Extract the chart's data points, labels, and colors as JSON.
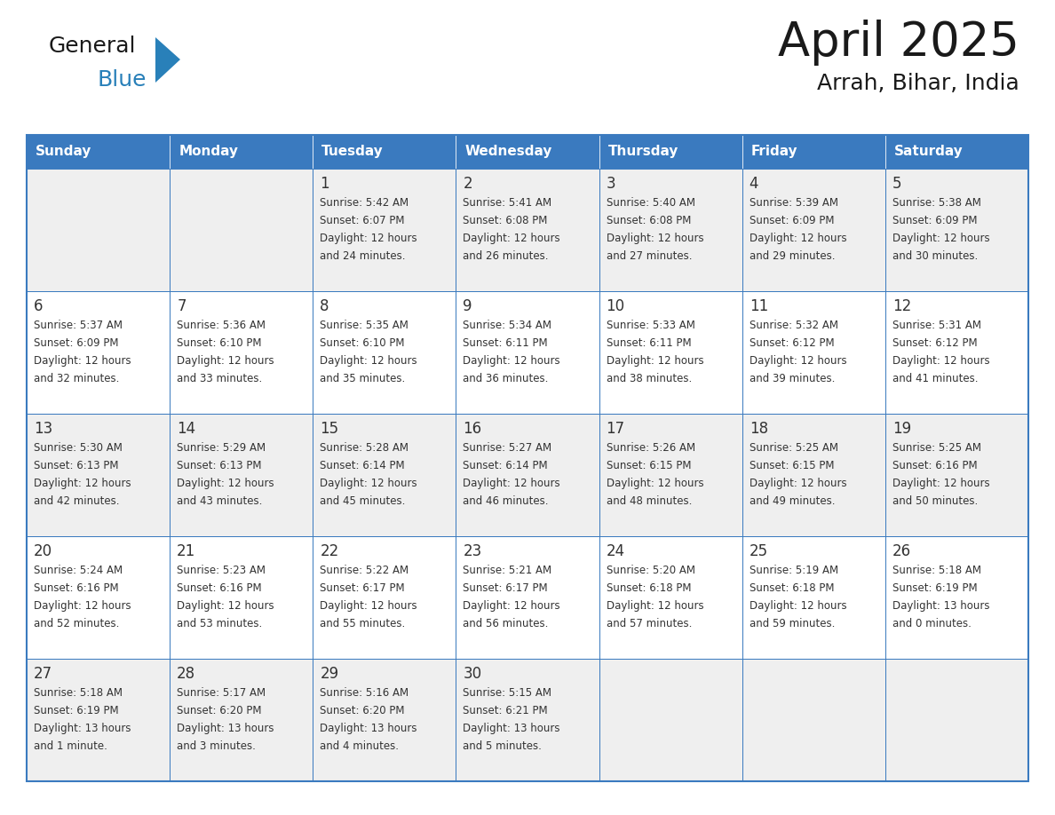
{
  "title": "April 2025",
  "subtitle": "Arrah, Bihar, India",
  "header_bg": "#3a7abf",
  "header_text_color": "#ffffff",
  "cell_bg_light": "#efefef",
  "cell_bg_white": "#ffffff",
  "cell_border_color": "#3a7abf",
  "text_color": "#333333",
  "logo_black": "#1a1a1a",
  "logo_blue": "#2980b9",
  "logo_triangle": "#2980b9",
  "days_of_week": [
    "Sunday",
    "Monday",
    "Tuesday",
    "Wednesday",
    "Thursday",
    "Friday",
    "Saturday"
  ],
  "calendar_data": [
    [
      {
        "day": "",
        "sunrise": "",
        "sunset": "",
        "daylight": ""
      },
      {
        "day": "",
        "sunrise": "",
        "sunset": "",
        "daylight": ""
      },
      {
        "day": "1",
        "sunrise": "Sunrise: 5:42 AM",
        "sunset": "Sunset: 6:07 PM",
        "daylight": "Daylight: 12 hours\nand 24 minutes."
      },
      {
        "day": "2",
        "sunrise": "Sunrise: 5:41 AM",
        "sunset": "Sunset: 6:08 PM",
        "daylight": "Daylight: 12 hours\nand 26 minutes."
      },
      {
        "day": "3",
        "sunrise": "Sunrise: 5:40 AM",
        "sunset": "Sunset: 6:08 PM",
        "daylight": "Daylight: 12 hours\nand 27 minutes."
      },
      {
        "day": "4",
        "sunrise": "Sunrise: 5:39 AM",
        "sunset": "Sunset: 6:09 PM",
        "daylight": "Daylight: 12 hours\nand 29 minutes."
      },
      {
        "day": "5",
        "sunrise": "Sunrise: 5:38 AM",
        "sunset": "Sunset: 6:09 PM",
        "daylight": "Daylight: 12 hours\nand 30 minutes."
      }
    ],
    [
      {
        "day": "6",
        "sunrise": "Sunrise: 5:37 AM",
        "sunset": "Sunset: 6:09 PM",
        "daylight": "Daylight: 12 hours\nand 32 minutes."
      },
      {
        "day": "7",
        "sunrise": "Sunrise: 5:36 AM",
        "sunset": "Sunset: 6:10 PM",
        "daylight": "Daylight: 12 hours\nand 33 minutes."
      },
      {
        "day": "8",
        "sunrise": "Sunrise: 5:35 AM",
        "sunset": "Sunset: 6:10 PM",
        "daylight": "Daylight: 12 hours\nand 35 minutes."
      },
      {
        "day": "9",
        "sunrise": "Sunrise: 5:34 AM",
        "sunset": "Sunset: 6:11 PM",
        "daylight": "Daylight: 12 hours\nand 36 minutes."
      },
      {
        "day": "10",
        "sunrise": "Sunrise: 5:33 AM",
        "sunset": "Sunset: 6:11 PM",
        "daylight": "Daylight: 12 hours\nand 38 minutes."
      },
      {
        "day": "11",
        "sunrise": "Sunrise: 5:32 AM",
        "sunset": "Sunset: 6:12 PM",
        "daylight": "Daylight: 12 hours\nand 39 minutes."
      },
      {
        "day": "12",
        "sunrise": "Sunrise: 5:31 AM",
        "sunset": "Sunset: 6:12 PM",
        "daylight": "Daylight: 12 hours\nand 41 minutes."
      }
    ],
    [
      {
        "day": "13",
        "sunrise": "Sunrise: 5:30 AM",
        "sunset": "Sunset: 6:13 PM",
        "daylight": "Daylight: 12 hours\nand 42 minutes."
      },
      {
        "day": "14",
        "sunrise": "Sunrise: 5:29 AM",
        "sunset": "Sunset: 6:13 PM",
        "daylight": "Daylight: 12 hours\nand 43 minutes."
      },
      {
        "day": "15",
        "sunrise": "Sunrise: 5:28 AM",
        "sunset": "Sunset: 6:14 PM",
        "daylight": "Daylight: 12 hours\nand 45 minutes."
      },
      {
        "day": "16",
        "sunrise": "Sunrise: 5:27 AM",
        "sunset": "Sunset: 6:14 PM",
        "daylight": "Daylight: 12 hours\nand 46 minutes."
      },
      {
        "day": "17",
        "sunrise": "Sunrise: 5:26 AM",
        "sunset": "Sunset: 6:15 PM",
        "daylight": "Daylight: 12 hours\nand 48 minutes."
      },
      {
        "day": "18",
        "sunrise": "Sunrise: 5:25 AM",
        "sunset": "Sunset: 6:15 PM",
        "daylight": "Daylight: 12 hours\nand 49 minutes."
      },
      {
        "day": "19",
        "sunrise": "Sunrise: 5:25 AM",
        "sunset": "Sunset: 6:16 PM",
        "daylight": "Daylight: 12 hours\nand 50 minutes."
      }
    ],
    [
      {
        "day": "20",
        "sunrise": "Sunrise: 5:24 AM",
        "sunset": "Sunset: 6:16 PM",
        "daylight": "Daylight: 12 hours\nand 52 minutes."
      },
      {
        "day": "21",
        "sunrise": "Sunrise: 5:23 AM",
        "sunset": "Sunset: 6:16 PM",
        "daylight": "Daylight: 12 hours\nand 53 minutes."
      },
      {
        "day": "22",
        "sunrise": "Sunrise: 5:22 AM",
        "sunset": "Sunset: 6:17 PM",
        "daylight": "Daylight: 12 hours\nand 55 minutes."
      },
      {
        "day": "23",
        "sunrise": "Sunrise: 5:21 AM",
        "sunset": "Sunset: 6:17 PM",
        "daylight": "Daylight: 12 hours\nand 56 minutes."
      },
      {
        "day": "24",
        "sunrise": "Sunrise: 5:20 AM",
        "sunset": "Sunset: 6:18 PM",
        "daylight": "Daylight: 12 hours\nand 57 minutes."
      },
      {
        "day": "25",
        "sunrise": "Sunrise: 5:19 AM",
        "sunset": "Sunset: 6:18 PM",
        "daylight": "Daylight: 12 hours\nand 59 minutes."
      },
      {
        "day": "26",
        "sunrise": "Sunrise: 5:18 AM",
        "sunset": "Sunset: 6:19 PM",
        "daylight": "Daylight: 13 hours\nand 0 minutes."
      }
    ],
    [
      {
        "day": "27",
        "sunrise": "Sunrise: 5:18 AM",
        "sunset": "Sunset: 6:19 PM",
        "daylight": "Daylight: 13 hours\nand 1 minute."
      },
      {
        "day": "28",
        "sunrise": "Sunrise: 5:17 AM",
        "sunset": "Sunset: 6:20 PM",
        "daylight": "Daylight: 13 hours\nand 3 minutes."
      },
      {
        "day": "29",
        "sunrise": "Sunrise: 5:16 AM",
        "sunset": "Sunset: 6:20 PM",
        "daylight": "Daylight: 13 hours\nand 4 minutes."
      },
      {
        "day": "30",
        "sunrise": "Sunrise: 5:15 AM",
        "sunset": "Sunset: 6:21 PM",
        "daylight": "Daylight: 13 hours\nand 5 minutes."
      },
      {
        "day": "",
        "sunrise": "",
        "sunset": "",
        "daylight": ""
      },
      {
        "day": "",
        "sunrise": "",
        "sunset": "",
        "daylight": ""
      },
      {
        "day": "",
        "sunrise": "",
        "sunset": "",
        "daylight": ""
      }
    ]
  ]
}
